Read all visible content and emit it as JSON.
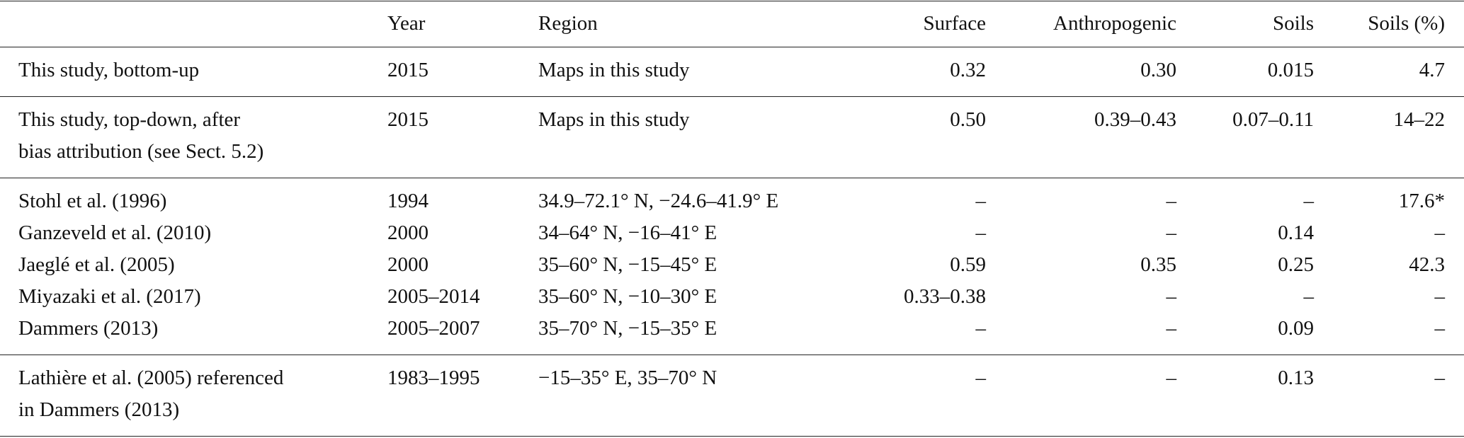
{
  "table": {
    "header": [
      "",
      "Year",
      "Region",
      "Surface",
      "Anthropogenic",
      "Soils",
      "Soils (%)"
    ],
    "groups": [
      [
        [
          "This study, bottom-up",
          "2015",
          "Maps in this study",
          "0.32",
          "0.30",
          "0.015",
          "4.7"
        ]
      ],
      [
        [
          "This study, top-down, after\nbias attribution (see Sect. 5.2)",
          "2015",
          "Maps in this study",
          "0.50",
          "0.39–0.43",
          "0.07–0.11",
          "14–22"
        ]
      ],
      [
        [
          "Stohl et al. (1996)",
          "1994",
          "34.9–72.1° N, −24.6–41.9° E",
          "–",
          "–",
          "–",
          "17.6*"
        ],
        [
          "Ganzeveld et al. (2010)",
          "2000",
          "34–64° N, −16–41° E",
          "–",
          "–",
          "0.14",
          "–"
        ],
        [
          "Jaeglé et al. (2005)",
          "2000",
          "35–60° N, −15–45° E",
          "0.59",
          "0.35",
          "0.25",
          "42.3"
        ],
        [
          "Miyazaki et al. (2017)",
          "2005–2014",
          "35–60° N, −10–30° E",
          "0.33–0.38",
          "–",
          "–",
          "–"
        ],
        [
          "Dammers (2013)",
          "2005–2007",
          "35–70° N, −15–35° E",
          "–",
          "–",
          "0.09",
          "–"
        ]
      ],
      [
        [
          "Lathière et al. (2005) referenced\nin Dammers (2013)",
          "1983–1995",
          "−15–35° E, 35–70° N",
          "–",
          "–",
          "0.13",
          "–"
        ]
      ]
    ]
  }
}
